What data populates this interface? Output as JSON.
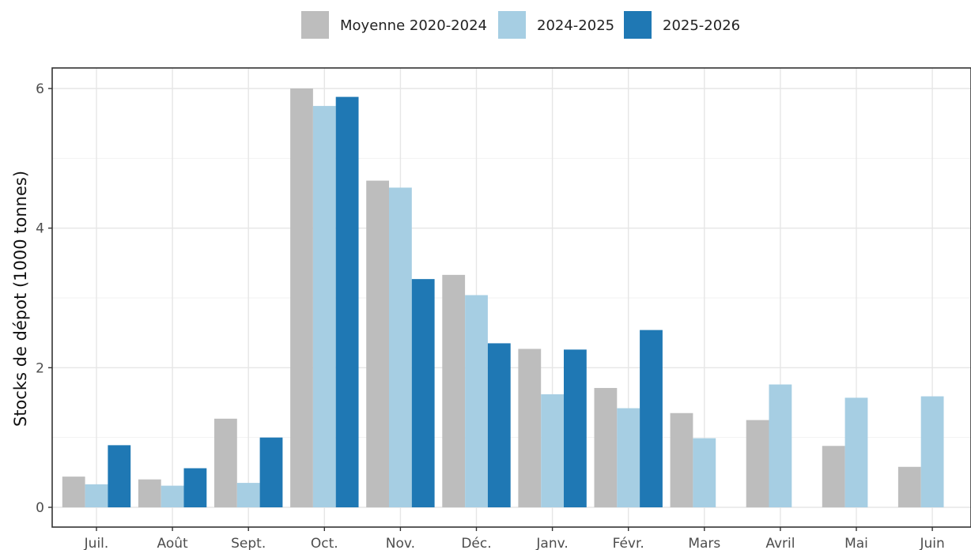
{
  "chart_data": {
    "type": "bar",
    "title": "",
    "xlabel": "",
    "ylabel": "Stocks de dépot (1000 tonnes)",
    "ylim": [
      0,
      6.3
    ],
    "yticks": [
      0,
      2,
      4,
      6
    ],
    "grid": true,
    "legend_position": "top",
    "categories": [
      "Juil.",
      "Août",
      "Sept.",
      "Oct.",
      "Nov.",
      "Déc.",
      "Janv.",
      "Févr.",
      "Mars",
      "Avril",
      "Mai",
      "Juin"
    ],
    "series": [
      {
        "name": "Moyenne 2020-2024",
        "color": "#bdbdbd",
        "values": [
          0.44,
          0.4,
          1.27,
          6.0,
          4.68,
          3.33,
          2.27,
          1.71,
          1.35,
          1.25,
          0.88,
          0.58
        ]
      },
      {
        "name": "2024-2025",
        "color": "#a6cee3",
        "values": [
          0.33,
          0.31,
          0.35,
          5.75,
          4.58,
          3.04,
          1.62,
          1.42,
          0.99,
          1.76,
          1.57,
          1.59
        ]
      },
      {
        "name": "2025-2026",
        "color": "#1f78b4",
        "values": [
          0.89,
          0.56,
          1.0,
          5.88,
          3.27,
          2.35,
          2.26,
          2.54,
          null,
          null,
          null,
          null
        ]
      }
    ]
  }
}
